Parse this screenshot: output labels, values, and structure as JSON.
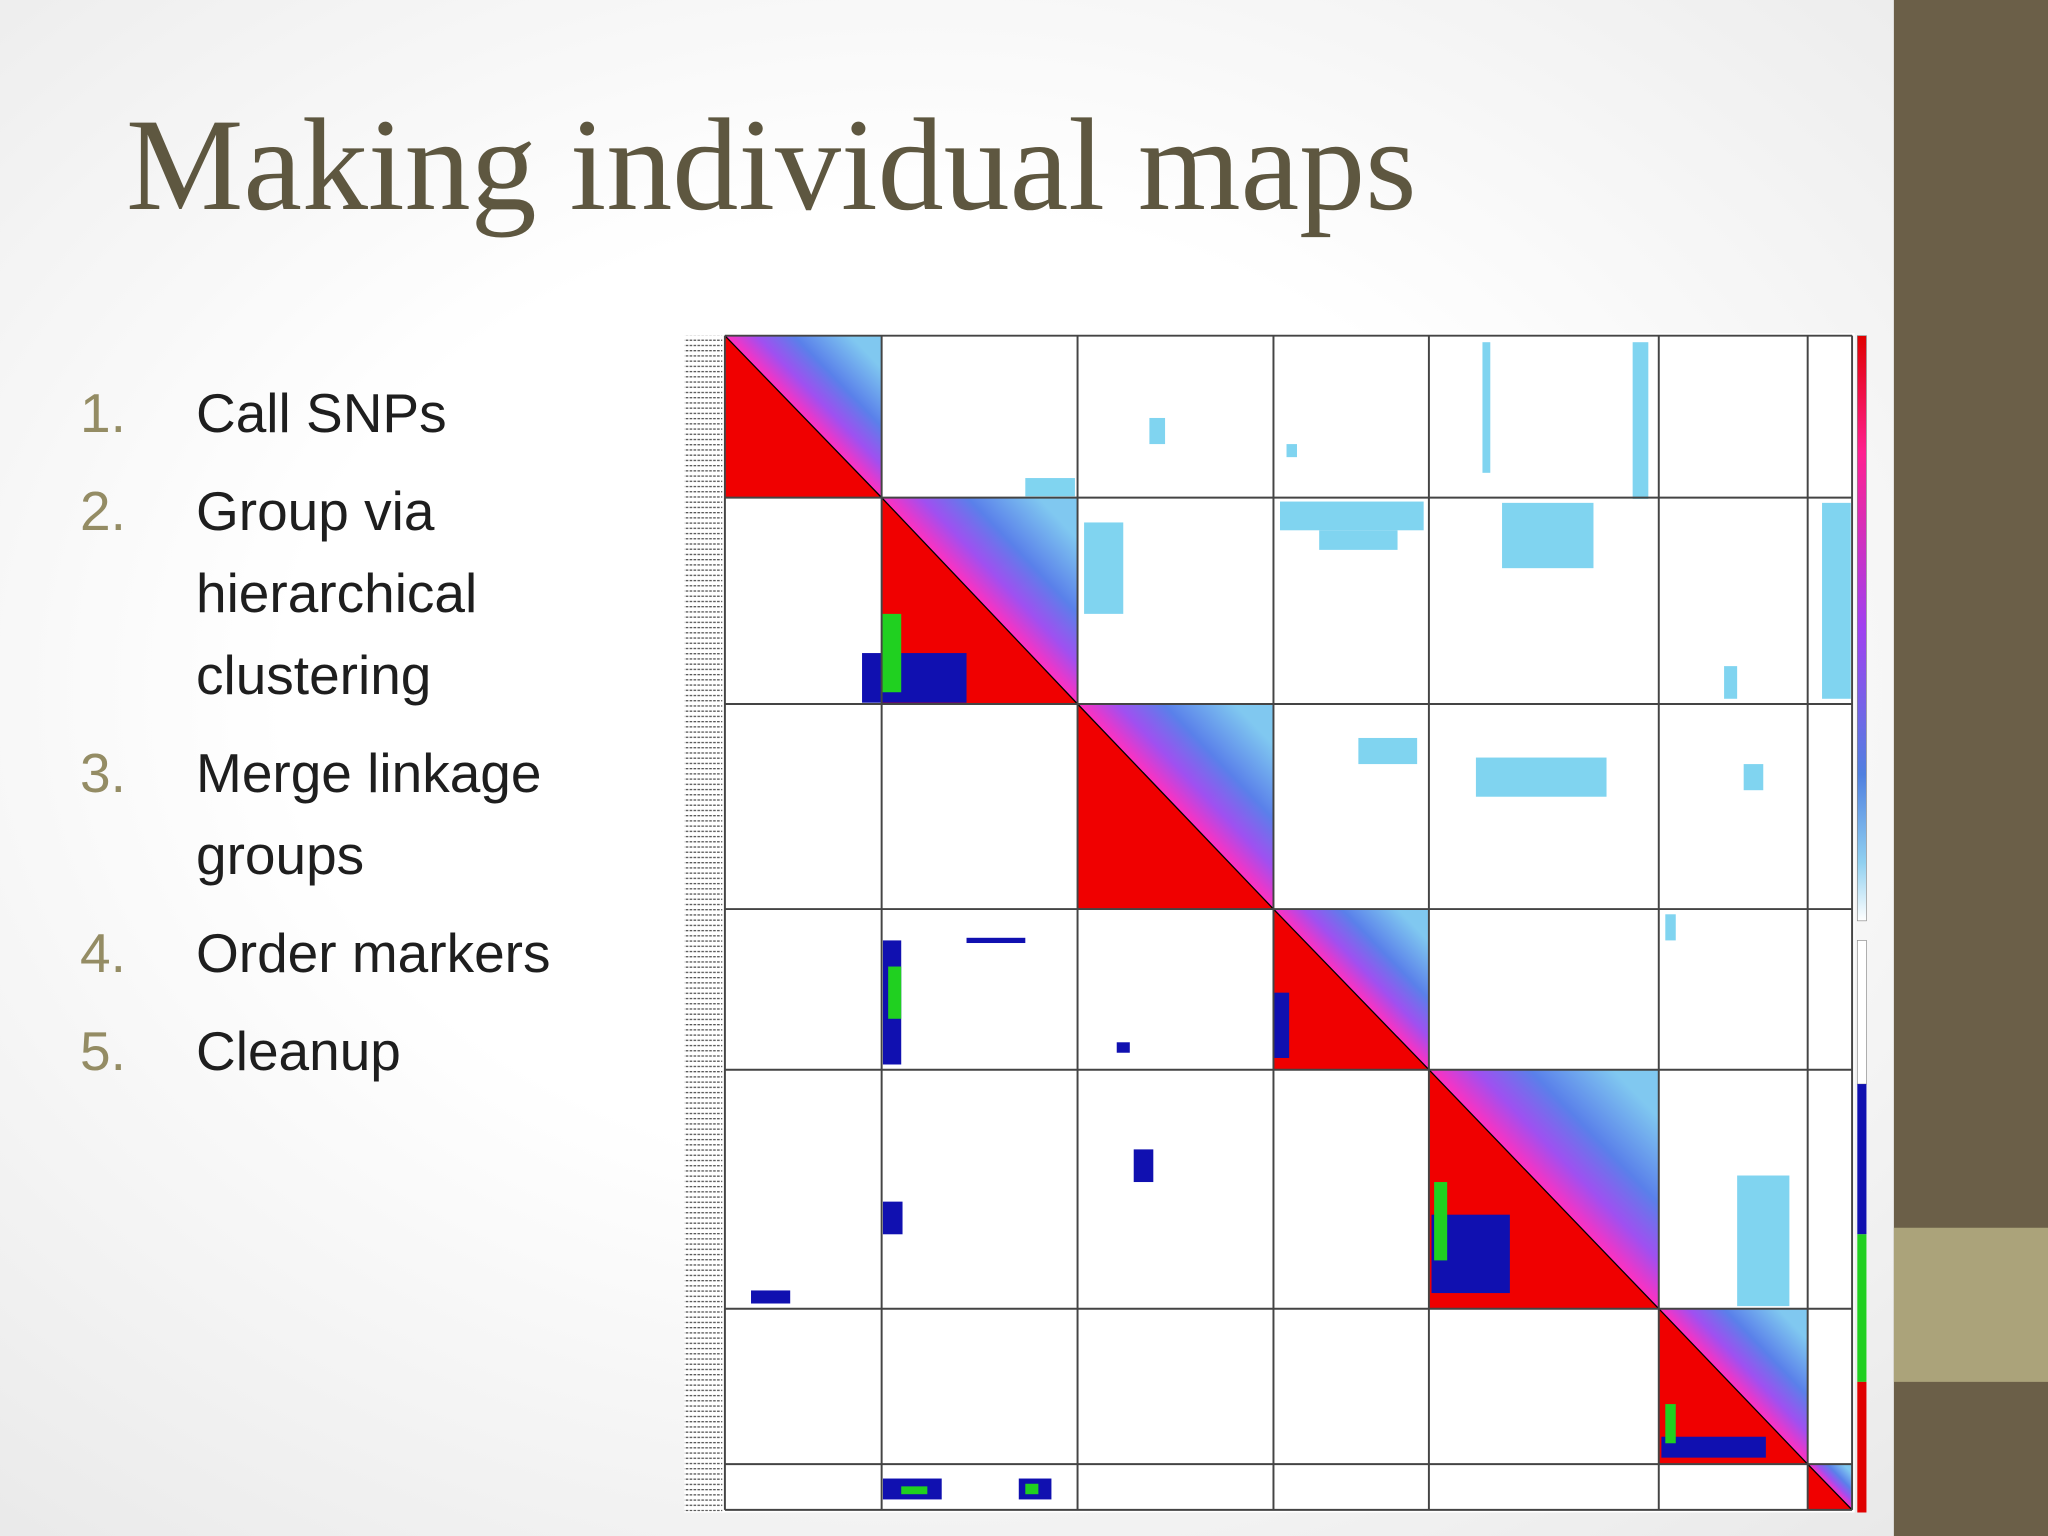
{
  "title": "Making individual maps",
  "list": [
    {
      "number": "1.",
      "text": "Call SNPs"
    },
    {
      "number": "2.",
      "text": "Group via hierarchical clustering"
    },
    {
      "number": "3.",
      "text": "Merge linkage groups"
    },
    {
      "number": "4.",
      "text": "Order markers"
    },
    {
      "number": "5.",
      "text": "Cleanup"
    }
  ]
}
